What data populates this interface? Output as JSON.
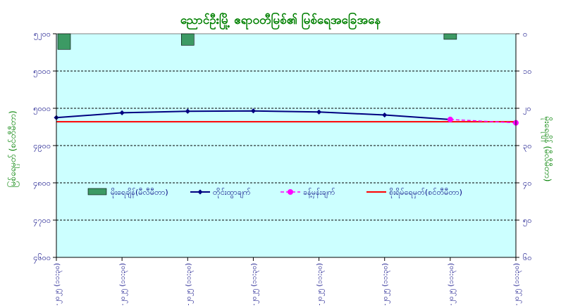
{
  "chart_data": {
    "type": "line",
    "title": "ညောင်ဦးမြို့ ဧရာဝတီမြစ်၏ မြစ်ရေအခြေအနေ",
    "ylabel_left": "မြစ်ရေမှတ် (စင်တီမီတာ)",
    "ylabel_right": "မိုးရေချိန် (မီလီမီတာ)",
    "categories": [
      "၂၈-၇-၂၀၂၅ (၁၁:၃၀)",
      "၂၉-၇-၂၀၂၅ (၁၁:၃၀)",
      "၃၀-၇-၂၀၂၅ (၁၁:၃၀)",
      "၃၁-၇-၂၀၂၅ (၁၁:၃၀)",
      "၁-၈-၂၀၂၅ (၁၁:၃၀)",
      "၂-၈-၂၀၂၅ (၁၁:၃၀)",
      "၃-၈-၂၀၂၅ (၁၁:၃၀)",
      "၄-၈-၂၀၂၅ (၁၁:၃၀)"
    ],
    "y_left": {
      "min": 4600,
      "max": 5200,
      "step": 100,
      "tick_labels": [
        "၄၆၀၀",
        "၄၇၀၀",
        "၄၈၀၀",
        "၄၉၀၀",
        "၅၀၀၀",
        "၅၁၀၀",
        "၅၂၀၀"
      ]
    },
    "y_right": {
      "min": 0,
      "max": 60,
      "step": 10,
      "inverted": true,
      "tick_labels": [
        "၀",
        "၁၀",
        "၂၀",
        "၃၀",
        "၄၀",
        "၅၀",
        "၆၀"
      ]
    },
    "series": [
      {
        "name": "မိုးရေချိန်(မီလီမီတာ)",
        "kind": "bar",
        "axis": "right",
        "color": "#3c9a64",
        "values": [
          4.2,
          0,
          3.1,
          0,
          0,
          0,
          1.5,
          0
        ]
      },
      {
        "name": "တိုင်းထွာချက်",
        "kind": "line",
        "axis": "left",
        "color": "#000080",
        "values": [
          4975,
          4988,
          4992,
          4993,
          4990,
          4982,
          4970,
          null
        ]
      },
      {
        "name": "ခန့်မှန်းချက်",
        "kind": "dashed-line",
        "axis": "left",
        "color": "#ff00ff",
        "values": [
          null,
          null,
          null,
          null,
          null,
          null,
          4970,
          4961
        ]
      },
      {
        "name": "စိုးရိမ်ရေမှတ်(စင်တီမီတာ)",
        "kind": "flat-line",
        "axis": "left",
        "color": "#ff0000",
        "values": [
          4964,
          4964,
          4964,
          4964,
          4964,
          4964,
          4964,
          4964
        ]
      }
    ],
    "grid": true,
    "legend": "center",
    "colors": {
      "plot_background": "#ccffff",
      "axis_text": "#000080",
      "title_text": "#008000",
      "gridline": "#000000"
    }
  }
}
